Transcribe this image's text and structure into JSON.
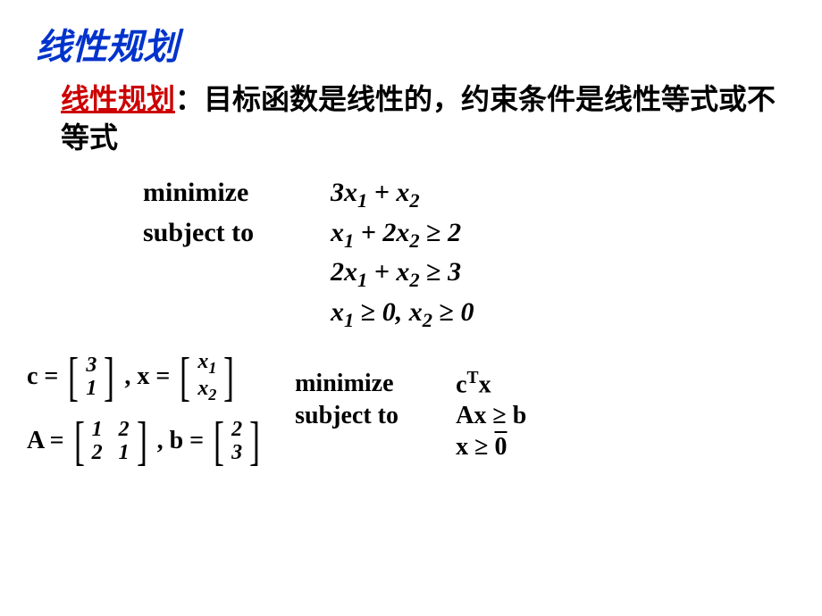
{
  "title": "线性规划",
  "definition": {
    "term": "线性规划",
    "colon": "：",
    "body": "目标函数是线性的，约束条件是线性等式或不等式"
  },
  "problem_explicit": {
    "minimize_label": "minimize",
    "subject_to_label": "subject to",
    "objective": "3x₁ + x₂",
    "constraint1": "x₁ + 2x₂ ≥ 2",
    "constraint2": "2x₁ + x₂ ≥ 3",
    "constraint3": "x₁ ≥ 0, x₂ ≥ 0"
  },
  "vectors": {
    "c_label": "c =",
    "c": [
      "3",
      "1"
    ],
    "x_label": ", x =",
    "x": [
      "x₁",
      "x₂"
    ],
    "A_label": "A =",
    "A": [
      [
        "1",
        "2"
      ],
      [
        "2",
        "1"
      ]
    ],
    "b_label": ", b =",
    "b": [
      "2",
      "3"
    ]
  },
  "problem_vector": {
    "minimize_label": "minimize",
    "subject_to_label": "subject to",
    "objective_pre": "c",
    "objective_sup": "T",
    "objective_post": "x",
    "constraint1": "Ax ≥ b",
    "constraint2": "x ≥ 0"
  },
  "colors": {
    "title": "#0033cc",
    "term": "#cc0000",
    "text": "#000000",
    "background": "#ffffff"
  }
}
